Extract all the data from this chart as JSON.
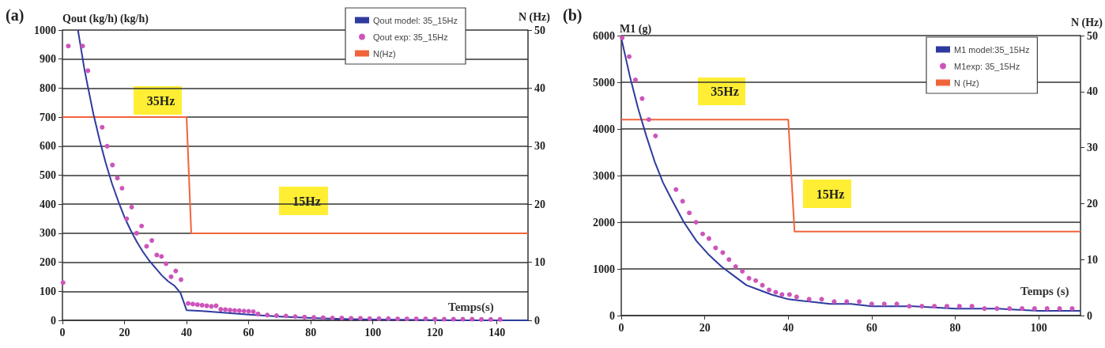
{
  "chart_data": [
    {
      "type": "line",
      "title": "(a)",
      "xlabel": "Temps(s)",
      "ylabel": "Qout (kg/h) (kg/h)",
      "y2label": "N (Hz)",
      "xlim": [
        0,
        150
      ],
      "xticks": [
        0,
        20,
        40,
        60,
        80,
        100,
        120,
        140
      ],
      "ylim": [
        0,
        1000
      ],
      "yticks": [
        0,
        100,
        200,
        300,
        400,
        500,
        600,
        700,
        800,
        900,
        1000
      ],
      "y2lim": [
        0,
        50
      ],
      "y2ticks": [
        0,
        10,
        20,
        30,
        40,
        50
      ],
      "grid": "y",
      "legend": "top right",
      "annotations": [
        "35Hz",
        "15Hz"
      ],
      "series": [
        {
          "name": "Qout model: 35_15Hz",
          "marker": "none",
          "color": "#2e3b9e",
          "x": [
            5,
            6,
            7,
            8,
            10,
            12,
            14,
            16,
            18,
            20,
            22,
            24,
            26,
            28,
            30,
            32,
            34,
            36,
            38,
            40,
            45,
            50,
            55,
            60,
            70,
            80,
            90,
            100,
            110,
            120,
            130,
            140,
            150
          ],
          "values": [
            1000,
            935,
            870,
            815,
            710,
            620,
            540,
            470,
            410,
            355,
            310,
            270,
            235,
            205,
            180,
            155,
            135,
            120,
            95,
            35,
            32,
            28,
            24,
            20,
            13,
            8,
            5,
            3,
            2,
            1,
            0,
            0,
            0
          ]
        },
        {
          "name": "Qout exp: 35_15Hz",
          "type": "scatter",
          "marker": "circle",
          "color": "#cc55bb",
          "x": [
            0.2,
            1.9,
            6.5,
            8.2,
            12.8,
            14.4,
            16.1,
            17.7,
            19.2,
            20.7,
            22.3,
            23.9,
            25.5,
            27.1,
            28.8,
            30.4,
            31.9,
            33.4,
            35,
            36.5,
            38.2,
            40.5,
            42,
            43.5,
            45,
            46.5,
            48,
            49.5,
            51,
            52.5,
            54,
            55.5,
            57,
            58.5,
            60,
            61.5,
            63,
            66,
            69,
            72,
            75,
            78,
            81,
            84,
            87,
            90,
            93,
            96,
            99,
            102,
            105,
            108,
            111,
            114,
            117,
            120,
            123,
            126,
            129,
            132,
            135,
            138,
            141
          ],
          "values": [
            130,
            945,
            945,
            860,
            665,
            600,
            535,
            490,
            455,
            350,
            390,
            300,
            325,
            255,
            275,
            225,
            220,
            195,
            150,
            170,
            140,
            58,
            56,
            54,
            52,
            50,
            48,
            50,
            38,
            37,
            35,
            34,
            33,
            32,
            31,
            30,
            22,
            18,
            16,
            15,
            13,
            11,
            10,
            9,
            8,
            8,
            7,
            7,
            6,
            6,
            6,
            5,
            5,
            5,
            5,
            4,
            4,
            4,
            4,
            4,
            3,
            3,
            3
          ]
        },
        {
          "name": "N(Hz)",
          "marker": "none",
          "axis": "y2",
          "color": "#f0643c",
          "x": [
            0,
            40,
            41.5,
            150
          ],
          "values": [
            35,
            35,
            15,
            15
          ]
        }
      ]
    },
    {
      "type": "line",
      "title": "(b)",
      "xlabel": "Temps (s)",
      "ylabel": "M1 (g)",
      "y2label": "N (Hz)",
      "xlim": [
        0,
        110
      ],
      "xticks": [
        0,
        20,
        40,
        60,
        80,
        100
      ],
      "ylim": [
        0,
        6000
      ],
      "yticks": [
        0,
        1000,
        2000,
        3000,
        4000,
        5000,
        6000
      ],
      "y2lim": [
        0,
        50
      ],
      "y2ticks": [
        0,
        10,
        20,
        30,
        40,
        50
      ],
      "grid": "y",
      "legend": "top right",
      "annotations": [
        "35Hz",
        "15Hz"
      ],
      "series": [
        {
          "name": "M1 model:35_15Hz",
          "marker": "none",
          "color": "#2e3b9e",
          "x": [
            0,
            2,
            4,
            6,
            8,
            10,
            12,
            15,
            18,
            21,
            24,
            27,
            30,
            33,
            36,
            40,
            45,
            50,
            55,
            60,
            70,
            80,
            90,
            100,
            110
          ],
          "values": [
            5950,
            5150,
            4450,
            3850,
            3300,
            2850,
            2500,
            2000,
            1600,
            1300,
            1050,
            850,
            650,
            550,
            450,
            350,
            300,
            250,
            250,
            200,
            200,
            150,
            150,
            100,
            100
          ]
        },
        {
          "name": "M1exp: 35_15Hz",
          "type": "scatter",
          "marker": "circle",
          "color": "#cc55bb",
          "x": [
            0.2,
            1.9,
            3.4,
            5,
            6.6,
            8.2,
            13.1,
            14.7,
            16.3,
            17.9,
            19.5,
            21,
            22.6,
            24.3,
            25.8,
            27.4,
            29,
            30.6,
            32.2,
            33.8,
            35.4,
            37,
            38.5,
            40.3,
            42,
            45,
            48,
            51,
            54,
            57,
            60,
            63,
            66,
            69,
            72,
            75,
            78,
            81,
            84,
            87,
            90,
            93,
            96,
            99,
            102,
            105,
            108
          ],
          "values": [
            5950,
            5550,
            5050,
            4650,
            4200,
            3850,
            2700,
            2450,
            2200,
            2000,
            1750,
            1650,
            1450,
            1350,
            1200,
            1050,
            950,
            800,
            750,
            650,
            550,
            500,
            450,
            450,
            400,
            350,
            350,
            300,
            300,
            300,
            250,
            250,
            250,
            200,
            200,
            200,
            200,
            200,
            200,
            150,
            150,
            150,
            150,
            150,
            150,
            150,
            150
          ]
        },
        {
          "name": "N (Hz)",
          "marker": "none",
          "axis": "y2",
          "color": "#f0643c",
          "x": [
            0,
            40,
            41.5,
            110
          ],
          "values": [
            35,
            35,
            15,
            15
          ]
        }
      ]
    }
  ]
}
